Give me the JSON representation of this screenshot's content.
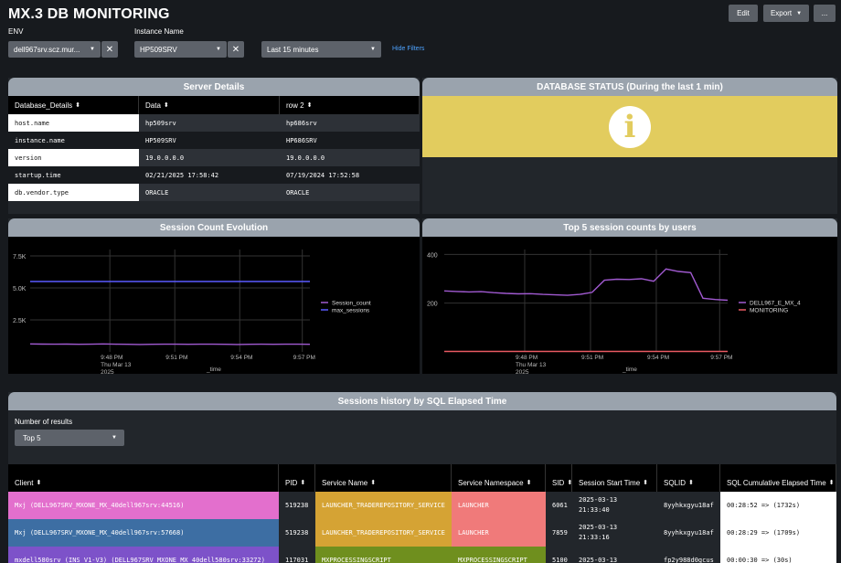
{
  "header": {
    "title": "MX.3 DB MONITORING",
    "edit_label": "Edit",
    "export_label": "Export",
    "more_label": "..."
  },
  "filters": {
    "env_label": "ENV",
    "env_value": "dell967srv.scz.mur...",
    "instance_label": "Instance Name",
    "instance_value": "HP509SRV",
    "time_value": "Last 15 minutes",
    "hide_filters_label": "Hide Filters"
  },
  "server_details": {
    "title": "Server Details",
    "columns": [
      "Database_Details",
      "Data",
      "row 2"
    ],
    "rows": [
      [
        "host.name",
        "hp509srv",
        "hp686srv"
      ],
      [
        "instance.name",
        "HP509SRV",
        "HP686SRV"
      ],
      [
        "version",
        "19.0.0.0.0",
        "19.0.0.0.0"
      ],
      [
        "startup.time",
        "02/21/2025 17:58:42",
        "07/19/2024 17:52:58"
      ],
      [
        "db.vendor.type",
        "ORACLE",
        "ORACLE"
      ]
    ]
  },
  "database_status": {
    "title": "DATABASE STATUS (During the last 1 min)",
    "icon": "info-icon",
    "color": "#e2cc5e"
  },
  "sessions_history": {
    "title": "Sessions history by SQL Elapsed Time",
    "num_results_label": "Number of results",
    "num_results_value": "Top 5",
    "columns": [
      "Client",
      "PID",
      "Service Name",
      "Service Namespace",
      "SID",
      "Session Start Time",
      "SQLID",
      "SQL Cumulative Elapsed Time"
    ],
    "rows": [
      {
        "cells": [
          "Mxj (DELL967SRV_MXONE_MX_40dell967srv:44516)",
          "519238",
          "LAUNCHER_TRADEREPOSITORY_SERVICE",
          "LAUNCHER",
          "6061",
          "2025-03-13\n21:33:40",
          "8yyhkxgyu18af",
          "00:28:52 => (1732s)"
        ],
        "colors": [
          "#e36fcd",
          "#22262b",
          "#d5a334",
          "#f07a7a",
          "#22262b",
          "#22262b",
          "#22262b",
          "#ffffff"
        ]
      },
      {
        "cells": [
          "Mxj (DELL967SRV_MXONE_MX_40dell967srv:57668)",
          "519238",
          "LAUNCHER_TRADEREPOSITORY_SERVICE",
          "LAUNCHER",
          "7859",
          "2025-03-13\n21:33:16",
          "8yyhkxgyu18af",
          "00:28:29 => (1709s)"
        ],
        "colors": [
          "#3d6ea3",
          "#22262b",
          "#d5a334",
          "#f07a7a",
          "#22262b",
          "#22262b",
          "#22262b",
          "#ffffff"
        ]
      },
      {
        "cells": [
          "mxdell580srv (INS_V1-V3) (DELL967SRV_MXONE_MX_40dell580srv:33272)",
          "117031",
          "MXPROCESSINGSCRIPT",
          "MXPROCESSINGSCRIPT",
          "5100",
          "2025-03-13",
          "fp2y988d0gcus",
          "00:00:30 => (30s)"
        ],
        "colors": [
          "#7d52c9",
          "#22262b",
          "#6f8f1e",
          "#6f8f1e",
          "#22262b",
          "#22262b",
          "#22262b",
          "#ffffff"
        ]
      }
    ]
  },
  "chart_data": [
    {
      "type": "line",
      "title": "Session Count Evolution",
      "xlabel": "_time",
      "ylabel": "",
      "x_tick_labels": [
        "9:48 PM\nThu Mar 13\n2025",
        "9:51 PM",
        "9:54 PM",
        "9:57 PM"
      ],
      "y_tick_labels": [
        "2.5K",
        "5.0K",
        "7.5K"
      ],
      "ylim": [
        0,
        8000
      ],
      "legend": "right",
      "series": [
        {
          "name": "Session_count",
          "color": "#a15ad1",
          "values": [
            620,
            610,
            600,
            610,
            590,
            600,
            620,
            600,
            590,
            580,
            590,
            600,
            600,
            590,
            600,
            600,
            590,
            580,
            590,
            600,
            590,
            600,
            600,
            590
          ]
        },
        {
          "name": "max_sessions",
          "color": "#5b5bff",
          "values": [
            5500,
            5500,
            5500,
            5500,
            5500,
            5500,
            5500,
            5500,
            5500,
            5500,
            5500,
            5500,
            5500,
            5500,
            5500,
            5500,
            5500,
            5500,
            5500,
            5500,
            5500,
            5500,
            5500,
            5500
          ]
        }
      ]
    },
    {
      "type": "line",
      "title": "Top 5 session counts by users",
      "xlabel": "_time",
      "ylabel": "",
      "x_tick_labels": [
        "9:48 PM\nThu Mar 13\n2025",
        "9:51 PM",
        "9:54 PM",
        "9:57 PM"
      ],
      "y_tick_labels": [
        "200",
        "400"
      ],
      "ylim": [
        0,
        420
      ],
      "legend": "right",
      "series": [
        {
          "name": "DELL967_E_MX_4",
          "color": "#a15ad1",
          "values": [
            250,
            248,
            246,
            247,
            243,
            240,
            238,
            239,
            236,
            234,
            232,
            236,
            244,
            294,
            298,
            297,
            300,
            290,
            340,
            330,
            325,
            220,
            215,
            212
          ]
        },
        {
          "name": "MONITORING",
          "color": "#ea5a63",
          "values": [
            2,
            2,
            2,
            2,
            2,
            2,
            2,
            2,
            2,
            2,
            2,
            2,
            2,
            2,
            2,
            2,
            2,
            2,
            2,
            2,
            2,
            2,
            2,
            2
          ]
        }
      ]
    }
  ]
}
